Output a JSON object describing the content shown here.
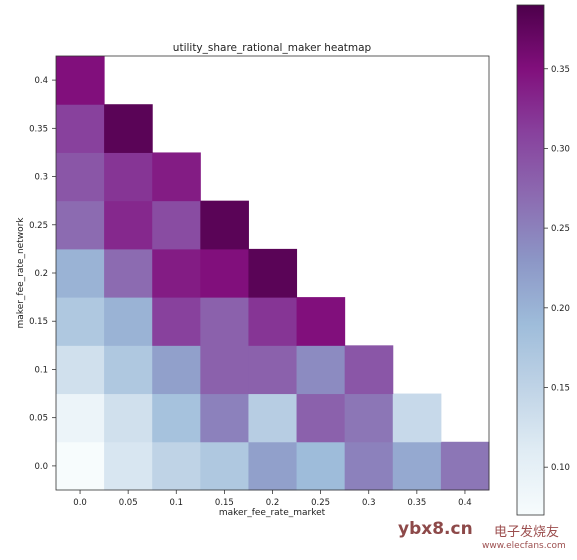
{
  "chart_data": {
    "type": "heatmap",
    "title": "utility_share_rational_maker heatmap",
    "xlabel": "maker_fee_rate_market",
    "ylabel": "maker_fee_rate_network",
    "x": [
      "0.0",
      "0.05",
      "0.1",
      "0.15",
      "0.2",
      "0.25",
      "0.3",
      "0.35",
      "0.4"
    ],
    "y": [
      "0.0",
      "0.05",
      "0.1",
      "0.15",
      "0.2",
      "0.25",
      "0.3",
      "0.35",
      "0.4"
    ],
    "values": [
      [
        0.06,
        0.12,
        0.15,
        0.17,
        0.22,
        0.19,
        0.25,
        0.21,
        0.26
      ],
      [
        0.09,
        0.13,
        0.18,
        0.25,
        0.16,
        0.28,
        0.26,
        0.14,
        null
      ],
      [
        0.13,
        0.17,
        0.22,
        0.28,
        0.28,
        0.24,
        0.29,
        null,
        null
      ],
      [
        0.17,
        0.2,
        0.31,
        0.28,
        0.32,
        0.35,
        null,
        null,
        null
      ],
      [
        0.2,
        0.27,
        0.34,
        0.35,
        0.38,
        null,
        null,
        null,
        null
      ],
      [
        0.27,
        0.33,
        0.3,
        0.38,
        null,
        null,
        null,
        null,
        null
      ],
      [
        0.29,
        0.32,
        0.34,
        null,
        null,
        null,
        null,
        null,
        null
      ],
      [
        0.31,
        0.38,
        null,
        null,
        null,
        null,
        null,
        null,
        null
      ],
      [
        0.35,
        null,
        null,
        null,
        null,
        null,
        null,
        null,
        null
      ]
    ],
    "colorbar": {
      "range": [
        0.07,
        0.39
      ],
      "ticks": [
        "0.10",
        "0.15",
        "0.20",
        "0.25",
        "0.30",
        "0.35"
      ],
      "tick_values": [
        0.1,
        0.15,
        0.2,
        0.25,
        0.3,
        0.35
      ],
      "colors": [
        "#f7fcfd",
        "#e0ecf4",
        "#bfd3e6",
        "#9ebcda",
        "#8c96c6",
        "#8c6bb1",
        "#88419d",
        "#810f7c",
        "#4d004b"
      ]
    },
    "grid": false
  },
  "watermark": {
    "text": "ybx8.cn",
    "logo_text": "电子发烧友",
    "url": "www.elecfans.com"
  }
}
